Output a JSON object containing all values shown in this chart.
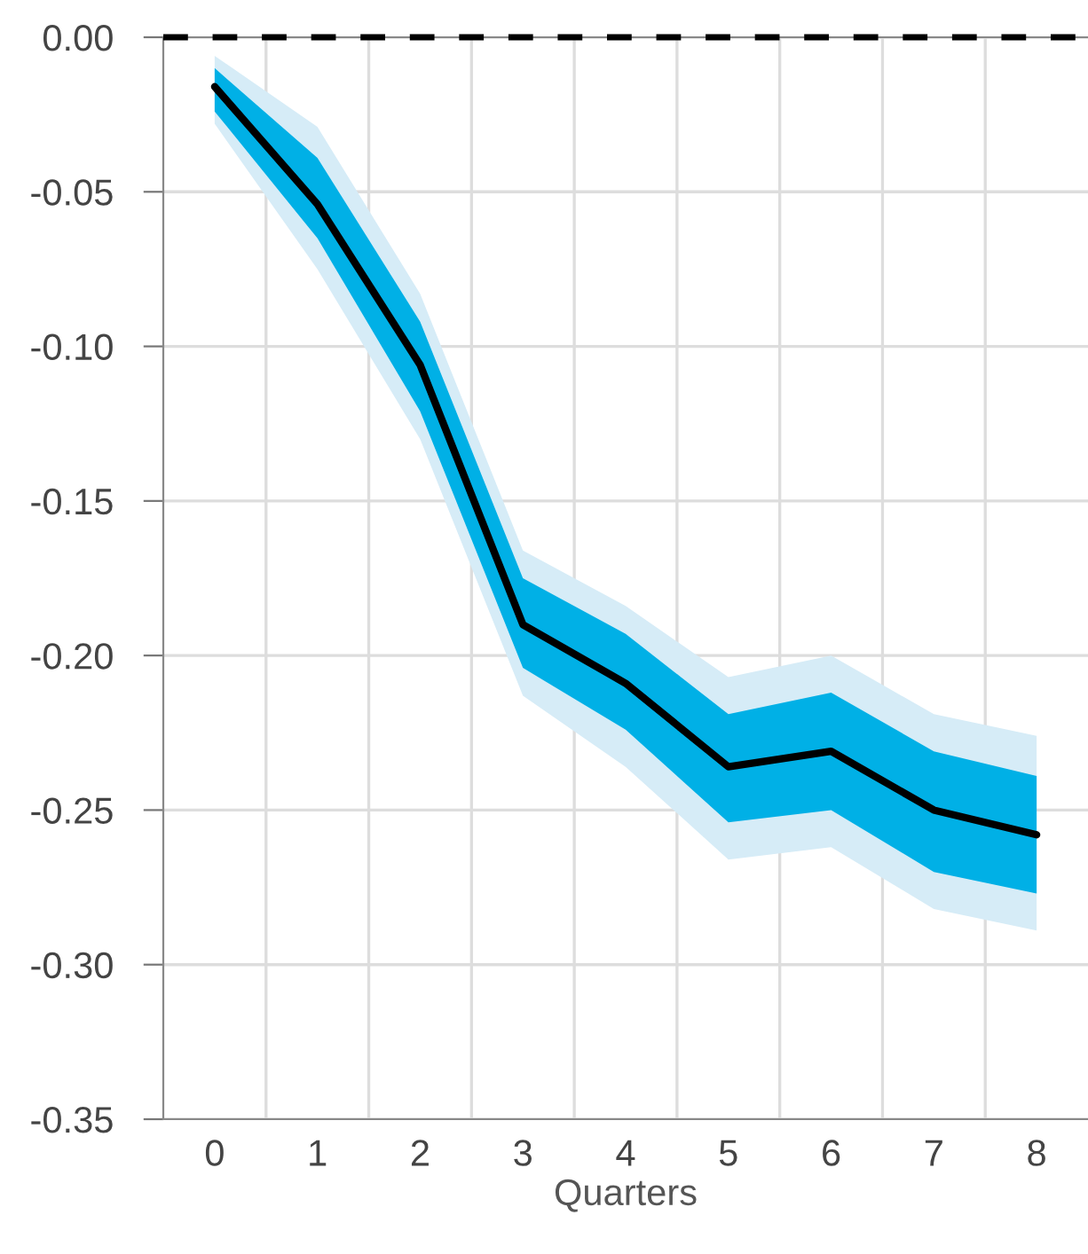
{
  "chart_data": {
    "type": "line",
    "xlabel": "Quarters",
    "categories": [
      "0",
      "1",
      "2",
      "3",
      "4",
      "5",
      "6",
      "7",
      "8"
    ],
    "series": [
      {
        "color": "#d6ecf7",
        "values": [
          null,
          null,
          null,
          null,
          null,
          null,
          null,
          null,
          null
        ],
        "lower": [
          -0.028,
          -0.075,
          -0.13,
          -0.213,
          -0.236,
          -0.266,
          -0.262,
          -0.282,
          -0.289
        ],
        "upper": [
          -0.006,
          -0.029,
          -0.083,
          -0.166,
          -0.184,
          -0.207,
          -0.2,
          -0.219,
          -0.226
        ]
      },
      {
        "color": "#00b0e6",
        "values": [
          null,
          null,
          null,
          null,
          null,
          null,
          null,
          null,
          null
        ],
        "lower": [
          -0.024,
          -0.065,
          -0.121,
          -0.204,
          -0.224,
          -0.254,
          -0.25,
          -0.27,
          -0.277
        ],
        "upper": [
          -0.01,
          -0.039,
          -0.092,
          -0.175,
          -0.193,
          -0.219,
          -0.212,
          -0.231,
          -0.239
        ]
      },
      {
        "color": "#000000",
        "values": [
          -0.016,
          -0.054,
          -0.106,
          -0.19,
          -0.209,
          -0.236,
          -0.231,
          -0.25,
          -0.258
        ]
      }
    ],
    "ylim": [
      -0.35,
      0.0
    ],
    "yticks": [
      {
        "value": -0.35,
        "label": "-0.35"
      },
      {
        "value": -0.3,
        "label": "-0.30"
      },
      {
        "value": -0.25,
        "label": "-0.25"
      },
      {
        "value": -0.2,
        "label": "-0.20"
      },
      {
        "value": -0.15,
        "label": "-0.15"
      },
      {
        "value": -0.1,
        "label": "-0.10"
      },
      {
        "value": -0.05,
        "label": "-0.05"
      },
      {
        "value": 0.0,
        "label": "0.00"
      }
    ],
    "ref_lines": [
      {
        "axis": "y",
        "value": 0.0,
        "color": "#000000",
        "line_style": "dashed"
      }
    ],
    "grid": true
  }
}
